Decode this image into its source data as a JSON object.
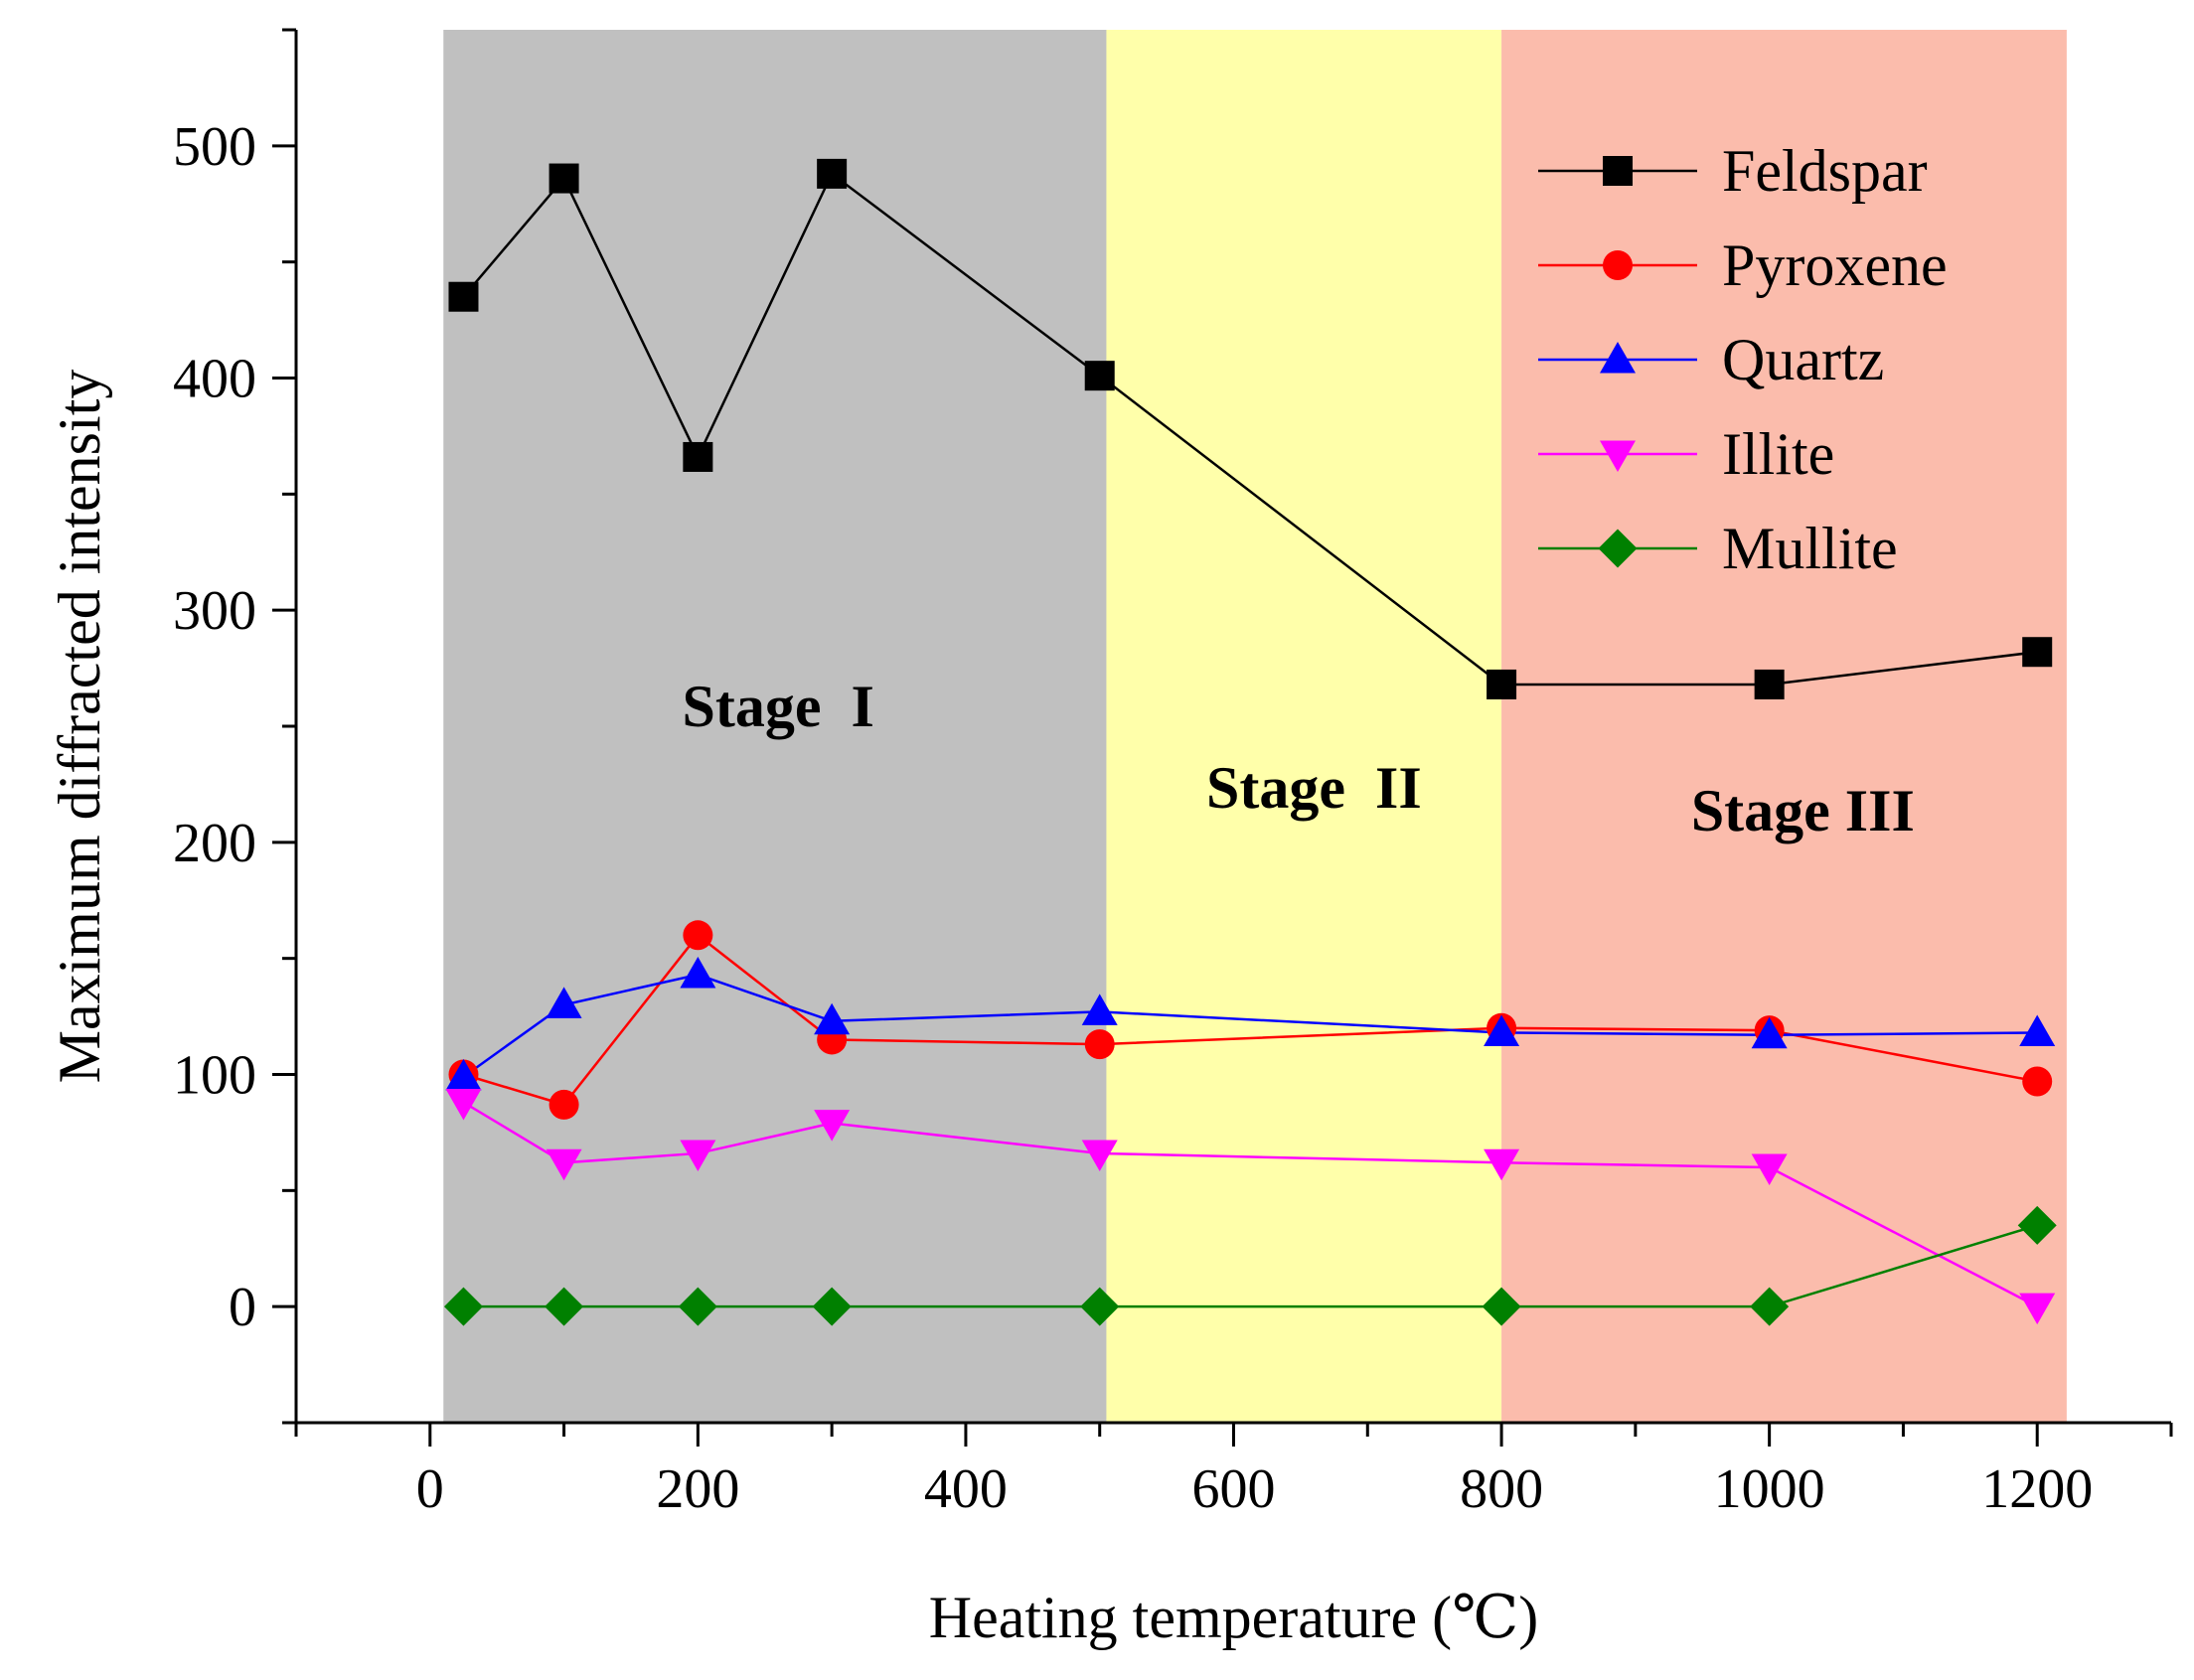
{
  "chart_data": {
    "type": "line",
    "title": "",
    "xlabel": "Heating temperature (℃)",
    "ylabel": "Maximum diffracted intensity",
    "xlim": [
      -100,
      1300
    ],
    "ylim": [
      -50,
      550
    ],
    "x_ticks": [
      0,
      200,
      400,
      600,
      800,
      1000,
      1200
    ],
    "x_tick_labels": [
      "0",
      "200",
      "400",
      "600",
      "800",
      "1000",
      "1200"
    ],
    "y_ticks": [
      0,
      100,
      200,
      300,
      400,
      500
    ],
    "y_tick_labels": [
      "0",
      "100",
      "200",
      "300",
      "400",
      "500"
    ],
    "x": [
      25,
      100,
      200,
      300,
      500,
      800,
      1000,
      1200
    ],
    "series": [
      {
        "name": "Feldspar",
        "color": "#000000",
        "marker": "square",
        "values": [
          435,
          486,
          366,
          488,
          401,
          268,
          268,
          282
        ]
      },
      {
        "name": "Pyroxene",
        "color": "#ff0000",
        "marker": "circle",
        "values": [
          100,
          87,
          160,
          115,
          113,
          120,
          119,
          97
        ]
      },
      {
        "name": "Quartz",
        "color": "#0000ff",
        "marker": "triangle-up",
        "values": [
          99,
          130,
          143,
          123,
          127,
          118,
          117,
          118
        ]
      },
      {
        "name": "Illite",
        "color": "#ff00ff",
        "marker": "triangle-down",
        "values": [
          88,
          62,
          66,
          79,
          66,
          62,
          60,
          0
        ]
      },
      {
        "name": "Mullite",
        "color": "#008000",
        "marker": "diamond",
        "values": [
          0,
          0,
          0,
          0,
          0,
          0,
          0,
          35
        ]
      }
    ],
    "regions": [
      {
        "label": "Stage  I",
        "x_start": 10,
        "x_end": 505,
        "color": "#c0c0c0",
        "label_x": 260,
        "label_y": 250
      },
      {
        "label": "Stage  II",
        "x_start": 505,
        "x_end": 800,
        "color": "#ffffaa",
        "label_x": 660,
        "label_y": 215
      },
      {
        "label": "Stage III",
        "x_start": 800,
        "x_end": 1222,
        "color": "#fbbcac",
        "label_x": 1025,
        "label_y": 205
      }
    ],
    "legend_position": "top-right"
  }
}
